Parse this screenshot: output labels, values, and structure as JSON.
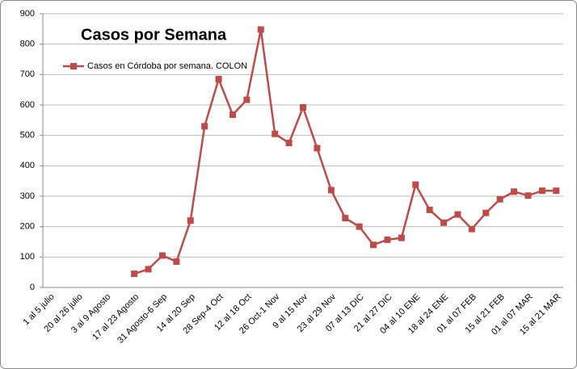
{
  "chart_data": {
    "type": "line",
    "title": "Casos por Semana",
    "categories": [
      "1 al 5 julio",
      null,
      "20 al 26 julio",
      null,
      "3 al 9 Agosto",
      null,
      "17 al 23 Agosto",
      null,
      "31 Agosto-6 Sep",
      null,
      "14 al 20 Sep",
      null,
      "28 Sep-4 Oct",
      null,
      "12 al 18 Oct",
      null,
      "26 Oct-1 Nov",
      null,
      "9 al 15 Nov",
      null,
      "23 al 29 Nov",
      null,
      "07 al 13 DIC",
      null,
      "21 al 27 DIC",
      null,
      "04 al 10 ENE",
      null,
      "18 al 24 ENE",
      null,
      "01 al 07 FEB",
      null,
      "15 al 21 FEB",
      null,
      "01 al 07 MAR",
      null,
      "15 al 21 MAR"
    ],
    "series": [
      {
        "name": "Casos en Córdoba por semana. COLON",
        "color": "#be4b48",
        "values": [
          null,
          null,
          null,
          null,
          null,
          null,
          45,
          60,
          105,
          85,
          220,
          530,
          685,
          568,
          617,
          848,
          505,
          475,
          592,
          458,
          320,
          228,
          200,
          140,
          157,
          163,
          338,
          255,
          213,
          240,
          192,
          245,
          290,
          315,
          302,
          318,
          318
        ]
      }
    ],
    "ylim": [
      0,
      900
    ],
    "yticks": [
      0,
      100,
      200,
      300,
      400,
      500,
      600,
      700,
      800,
      900
    ],
    "grid": true,
    "legend": "top-left"
  }
}
